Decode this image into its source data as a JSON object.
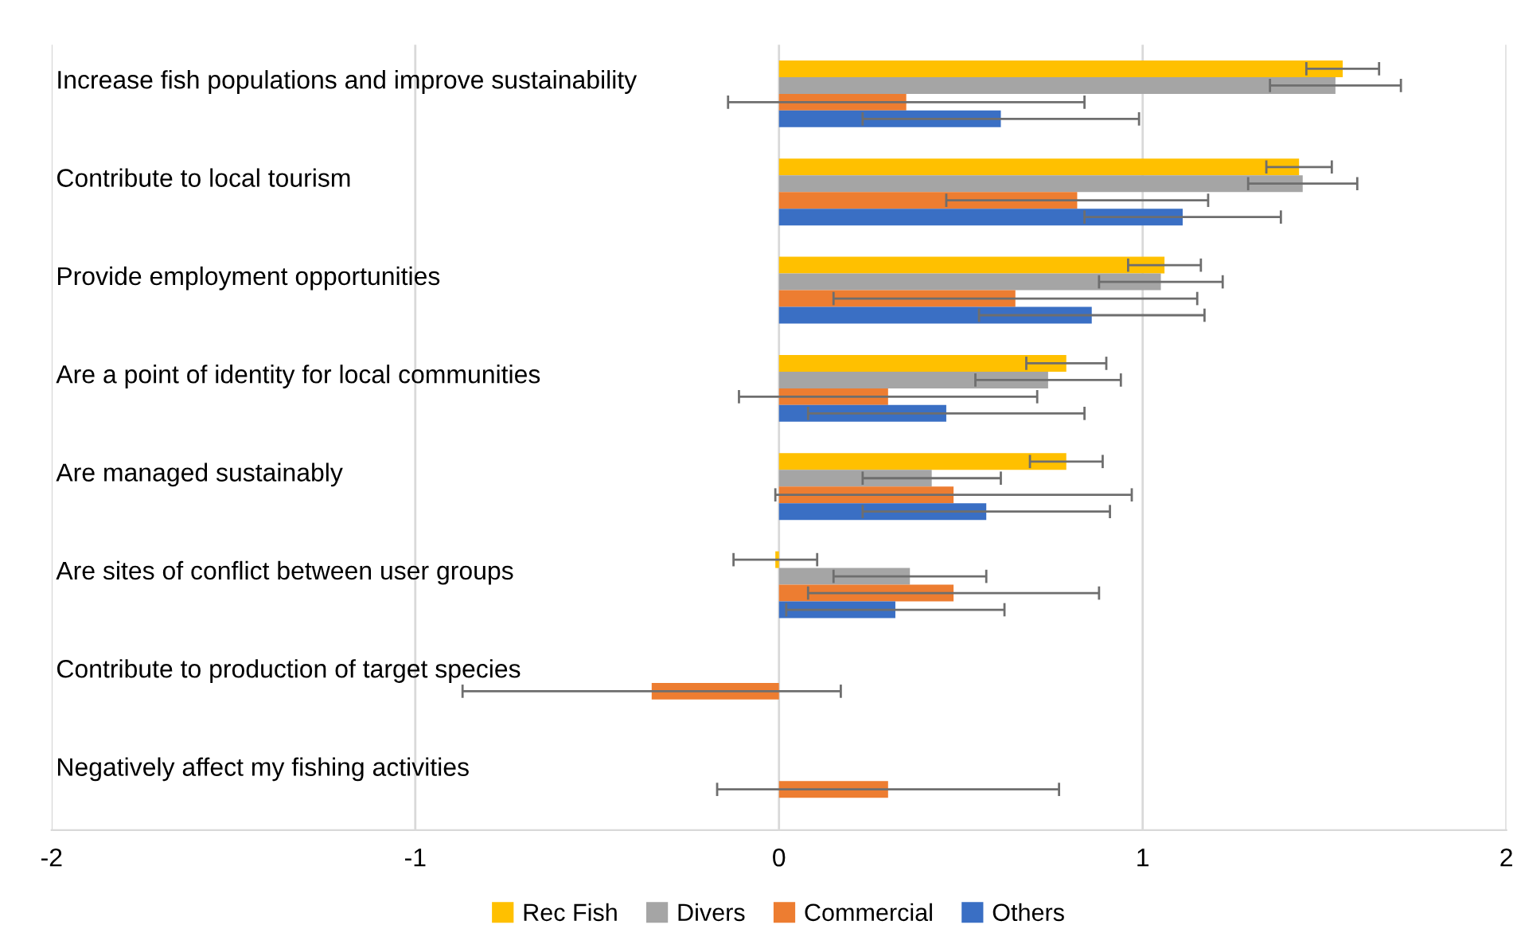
{
  "chart_data": {
    "type": "bar",
    "orientation": "horizontal",
    "categories": [
      "Increase fish populations and improve sustainability",
      "Contribute to local tourism",
      "Provide employment opportunities",
      "Are a point of identity for local communities",
      "Are managed sustainably",
      "Are sites of conflict between user groups",
      "Contribute to production of target species",
      "Negatively affect my fishing activities"
    ],
    "series": [
      {
        "name": "Rec Fish",
        "color": "#ffc000",
        "values": [
          1.55,
          1.43,
          1.06,
          0.79,
          0.79,
          -0.01,
          null,
          null
        ],
        "errors": [
          0.1,
          0.09,
          0.1,
          0.11,
          0.1,
          0.115,
          null,
          null
        ]
      },
      {
        "name": "Divers",
        "color": "#a5a5a5",
        "values": [
          1.53,
          1.44,
          1.05,
          0.74,
          0.42,
          0.36,
          null,
          null
        ],
        "errors": [
          0.18,
          0.15,
          0.17,
          0.2,
          0.19,
          0.21,
          null,
          null
        ]
      },
      {
        "name": "Commercial",
        "color": "#ed7d31",
        "values": [
          0.35,
          0.82,
          0.65,
          0.3,
          0.48,
          0.48,
          -0.35,
          0.3
        ],
        "errors": [
          0.49,
          0.36,
          0.5,
          0.41,
          0.49,
          0.4,
          0.52,
          0.47
        ]
      },
      {
        "name": "Others",
        "color": "#3a6fc4",
        "values": [
          0.61,
          1.11,
          0.86,
          0.46,
          0.57,
          0.32,
          null,
          null
        ],
        "errors": [
          0.38,
          0.27,
          0.31,
          0.38,
          0.34,
          0.3,
          null,
          null
        ]
      }
    ],
    "xlim": [
      -2,
      2
    ],
    "xticks": [
      -2,
      -1,
      0,
      1,
      2
    ],
    "grid": "x",
    "legend": "bottom"
  }
}
